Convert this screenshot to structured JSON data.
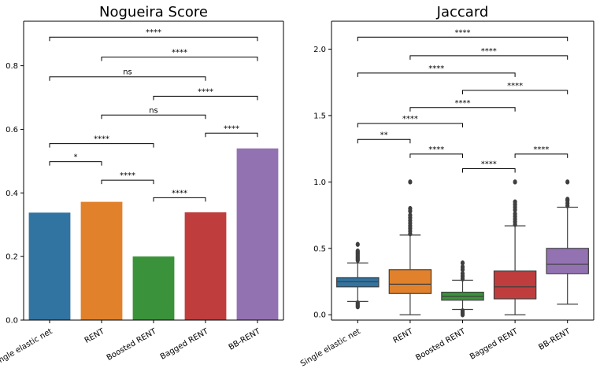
{
  "chart_data": [
    {
      "type": "bar",
      "title": "Nogueira Score",
      "xlabel": "",
      "ylabel": "",
      "categories": [
        "Single elastic net",
        "RENT",
        "Boosted RENT",
        "Bagged RENT",
        "BB-RENT"
      ],
      "values": [
        0.338,
        0.372,
        0.2,
        0.339,
        0.54
      ],
      "colors": [
        "#3274a1",
        "#e1812c",
        "#3a923a",
        "#c03d3e",
        "#9372b2"
      ],
      "ylim": [
        0,
        0.94
      ],
      "yticks": [
        0.0,
        0.2,
        0.4,
        0.6,
        0.8
      ],
      "ytick_labels": [
        "0.0",
        "0.2",
        "0.4",
        "0.6",
        "0.8"
      ],
      "grid": false,
      "annotations": [
        {
          "from": 0,
          "to": 4,
          "y": 0.89,
          "text": "****"
        },
        {
          "from": 1,
          "to": 4,
          "y": 0.827,
          "text": "****"
        },
        {
          "from": 0,
          "to": 3,
          "y": 0.765,
          "text": "ns"
        },
        {
          "from": 2,
          "to": 4,
          "y": 0.704,
          "text": "****"
        },
        {
          "from": 1,
          "to": 3,
          "y": 0.645,
          "text": "ns"
        },
        {
          "from": 3,
          "to": 4,
          "y": 0.588,
          "text": "****"
        },
        {
          "from": 0,
          "to": 2,
          "y": 0.555,
          "text": "****"
        },
        {
          "from": 0,
          "to": 1,
          "y": 0.498,
          "text": "*"
        },
        {
          "from": 1,
          "to": 2,
          "y": 0.44,
          "text": "****"
        },
        {
          "from": 2,
          "to": 3,
          "y": 0.385,
          "text": "****"
        }
      ]
    },
    {
      "type": "box",
      "title": "Jaccard",
      "xlabel": "",
      "ylabel": "",
      "categories": [
        "Single elastic net",
        "RENT",
        "Boosted RENT",
        "Bagged RENT",
        "BB-RENT"
      ],
      "colors": [
        "#3274a1",
        "#e1812c",
        "#3a923a",
        "#c03d3e",
        "#9372b2"
      ],
      "ylim": [
        -0.04,
        2.21
      ],
      "yticks": [
        0.0,
        0.5,
        1.0,
        1.5,
        2.0
      ],
      "ytick_labels": [
        "0.0",
        "0.5",
        "1.0",
        "1.5",
        "2.0"
      ],
      "grid": false,
      "boxes": [
        {
          "whislo": 0.1,
          "q1": 0.21,
          "med": 0.25,
          "q3": 0.28,
          "whishi": 0.39,
          "fliers": [
            0.06,
            0.07,
            0.08,
            0.09,
            0.41,
            0.42,
            0.43,
            0.44,
            0.45,
            0.46,
            0.47,
            0.48,
            0.53
          ]
        },
        {
          "whislo": 0.0,
          "q1": 0.16,
          "med": 0.23,
          "q3": 0.34,
          "whishi": 0.6,
          "fliers": [
            0.61,
            0.63,
            0.65,
            0.67,
            0.69,
            0.71,
            0.73,
            0.75,
            0.78,
            0.8,
            1.0
          ]
        },
        {
          "whislo": 0.04,
          "q1": 0.11,
          "med": 0.14,
          "q3": 0.17,
          "whishi": 0.26,
          "fliers": [
            0.0,
            0.01,
            0.02,
            0.03,
            0.27,
            0.29,
            0.31,
            0.34,
            0.36,
            0.39
          ]
        },
        {
          "whislo": 0.0,
          "q1": 0.12,
          "med": 0.21,
          "q3": 0.33,
          "whishi": 0.67,
          "fliers": [
            0.68,
            0.7,
            0.72,
            0.74,
            0.76,
            0.79,
            0.81,
            0.83,
            0.85,
            1.0
          ]
        },
        {
          "whislo": 0.08,
          "q1": 0.31,
          "med": 0.38,
          "q3": 0.5,
          "whishi": 0.81,
          "fliers": [
            0.82,
            0.84,
            0.86,
            0.87,
            1.0
          ]
        }
      ],
      "annotations": [
        {
          "from": 0,
          "to": 4,
          "y": 2.09,
          "text": "****"
        },
        {
          "from": 1,
          "to": 4,
          "y": 1.95,
          "text": "****"
        },
        {
          "from": 0,
          "to": 3,
          "y": 1.82,
          "text": "****"
        },
        {
          "from": 2,
          "to": 4,
          "y": 1.69,
          "text": "****"
        },
        {
          "from": 1,
          "to": 3,
          "y": 1.56,
          "text": "****"
        },
        {
          "from": 0,
          "to": 2,
          "y": 1.44,
          "text": "****"
        },
        {
          "from": 0,
          "to": 1,
          "y": 1.32,
          "text": "**"
        },
        {
          "from": 1,
          "to": 2,
          "y": 1.21,
          "text": "****"
        },
        {
          "from": 3,
          "to": 4,
          "y": 1.21,
          "text": "****"
        },
        {
          "from": 2,
          "to": 3,
          "y": 1.1,
          "text": "****"
        }
      ]
    }
  ]
}
